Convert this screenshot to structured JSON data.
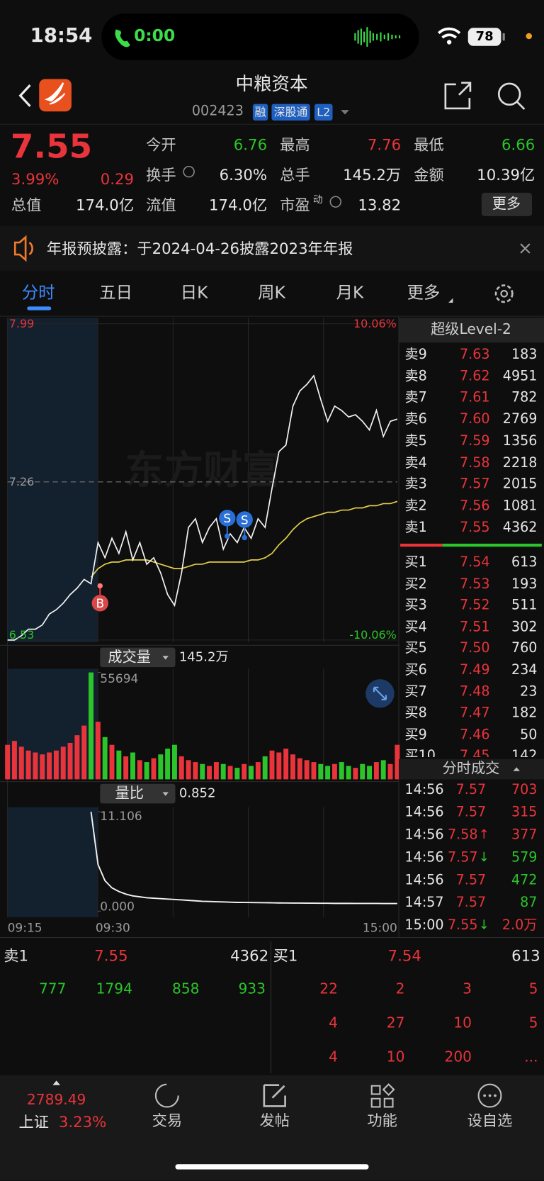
{
  "status_bar": {
    "time": "18:54",
    "call_time": "0:00",
    "battery": "78"
  },
  "header": {
    "title": "中粮资本",
    "code": "002423",
    "badges": [
      "融",
      "深股通",
      "L2"
    ]
  },
  "quote": {
    "price": "7.55",
    "change_pct": "3.99%",
    "change": "0.29",
    "more": "更多",
    "fields": [
      {
        "label": "今开",
        "value": "6.76",
        "color": "down"
      },
      {
        "label": "最高",
        "value": "7.76",
        "color": "up"
      },
      {
        "label": "最低",
        "value": "6.66",
        "color": "down"
      },
      {
        "label": "换手",
        "value": "6.30%"
      },
      {
        "label": "总手",
        "value": "145.2万"
      },
      {
        "label": "金额",
        "value": "10.39亿"
      },
      {
        "label": "总值",
        "value": "174.0亿"
      },
      {
        "label": "流值",
        "value": "174.0亿"
      },
      {
        "label": "市盈",
        "sup": "动",
        "value": "13.82"
      }
    ]
  },
  "notice": {
    "text": "年报预披露：于2024-04-26披露2023年年报"
  },
  "tabs": {
    "items": [
      "分时",
      "五日",
      "日K",
      "周K",
      "月K",
      "更多"
    ],
    "active": 0
  },
  "chart_data": {
    "type": "line",
    "watermark": "东方财富",
    "ylim": [
      6.53,
      7.99
    ],
    "yticks": [
      6.53,
      7.26,
      7.99
    ],
    "pct_labels": [
      "10.06%",
      "-10.06%"
    ],
    "x_labels": [
      "09:15",
      "09:30",
      "15:00"
    ],
    "markers": [
      "B",
      "S",
      "S"
    ],
    "colors": {
      "price": "#f2f2f2",
      "avg": "#e3cf4a",
      "up": "#e8343a",
      "down": "#2bc42b",
      "ratio": "#f2f2f2"
    },
    "price": [
      6.53,
      6.53,
      6.55,
      6.58,
      6.58,
      6.6,
      6.65,
      6.67,
      6.7,
      6.74,
      6.77,
      6.81,
      6.79,
      6.98,
      6.91,
      7.0,
      6.93,
      7.03,
      6.9,
      6.98,
      6.88,
      6.91,
      6.84,
      6.74,
      6.69,
      6.84,
      7.05,
      7.09,
      6.98,
      7.05,
      7.09,
      6.95,
      7.02,
      6.98,
      7.05,
      7.0,
      7.09,
      7.05,
      7.23,
      7.4,
      7.43,
      7.61,
      7.68,
      7.71,
      7.75,
      7.64,
      7.54,
      7.61,
      7.59,
      7.56,
      7.57,
      7.54,
      7.5,
      7.59,
      7.47,
      7.54,
      7.55
    ],
    "avg": [
      null,
      null,
      null,
      null,
      null,
      null,
      null,
      null,
      null,
      null,
      null,
      null,
      6.82,
      6.86,
      6.88,
      6.89,
      6.89,
      6.9,
      6.9,
      6.9,
      6.9,
      6.89,
      6.88,
      6.87,
      6.86,
      6.86,
      6.87,
      6.88,
      6.88,
      6.89,
      6.89,
      6.89,
      6.89,
      6.89,
      6.89,
      6.9,
      6.9,
      6.91,
      6.93,
      6.97,
      7.0,
      7.04,
      7.07,
      7.09,
      7.1,
      7.11,
      7.12,
      7.12,
      7.13,
      7.13,
      7.14,
      7.14,
      7.15,
      7.15,
      7.16,
      7.16,
      7.17
    ],
    "volume": {
      "label": "成交量",
      "total": "145.2万",
      "ylim": [
        0,
        55694
      ],
      "yticks": [
        55694
      ],
      "values": [
        18000,
        20000,
        17000,
        15000,
        14000,
        13000,
        14000,
        15000,
        17000,
        19000,
        23000,
        28000,
        55694,
        30000,
        22000,
        18000,
        15000,
        12000,
        14000,
        10000,
        9000,
        11000,
        13000,
        16000,
        18000,
        12000,
        10000,
        9000,
        8000,
        7000,
        9000,
        8000,
        7000,
        6000,
        8000,
        7000,
        9000,
        12000,
        15000,
        14000,
        16000,
        13000,
        11000,
        10000,
        9000,
        8000,
        7000,
        8000,
        9000,
        7000,
        6000,
        8000,
        7000,
        9000,
        10000,
        8000,
        18000
      ]
    },
    "ratio": {
      "label": "量比",
      "value": "0.852",
      "ylim": [
        0,
        11.106
      ],
      "yticks": [
        {
          "value": 0,
          "label": "0.000"
        },
        11.106
      ],
      "values": [
        null,
        null,
        null,
        null,
        null,
        null,
        null,
        null,
        null,
        null,
        null,
        null,
        11.106,
        5.2,
        3.4,
        2.6,
        2.2,
        1.9,
        1.7,
        1.6,
        1.5,
        1.45,
        1.4,
        1.35,
        1.3,
        1.25,
        1.2,
        1.15,
        1.1,
        1.08,
        1.05,
        1.03,
        1.0,
        0.98,
        0.97,
        0.96,
        0.95,
        0.94,
        0.93,
        0.92,
        0.91,
        0.9,
        0.9,
        0.89,
        0.89,
        0.88,
        0.88,
        0.87,
        0.87,
        0.87,
        0.86,
        0.86,
        0.86,
        0.86,
        0.85,
        0.85,
        0.852
      ]
    }
  },
  "level2": {
    "title": "超级Level-2",
    "asks": [
      [
        "卖9",
        "7.63",
        "183"
      ],
      [
        "卖8",
        "7.62",
        "4951"
      ],
      [
        "卖7",
        "7.61",
        "782"
      ],
      [
        "卖6",
        "7.60",
        "2769"
      ],
      [
        "卖5",
        "7.59",
        "1356"
      ],
      [
        "卖4",
        "7.58",
        "2218"
      ],
      [
        "卖3",
        "7.57",
        "2015"
      ],
      [
        "卖2",
        "7.56",
        "1081"
      ],
      [
        "卖1",
        "7.55",
        "4362"
      ]
    ],
    "bids": [
      [
        "买1",
        "7.54",
        "613"
      ],
      [
        "买2",
        "7.53",
        "193"
      ],
      [
        "买3",
        "7.52",
        "511"
      ],
      [
        "买4",
        "7.51",
        "302"
      ],
      [
        "买5",
        "7.50",
        "760"
      ],
      [
        "买6",
        "7.49",
        "234"
      ],
      [
        "买7",
        "7.48",
        "23"
      ],
      [
        "买8",
        "7.47",
        "182"
      ],
      [
        "买9",
        "7.46",
        "50"
      ],
      [
        "买10",
        "7.45",
        "142"
      ]
    ]
  },
  "ticks": {
    "title": "分时成交",
    "rows": [
      {
        "time": "14:56",
        "price": "7.57",
        "volume": "703",
        "side": "up"
      },
      {
        "time": "14:56",
        "price": "7.57",
        "volume": "315",
        "side": "up"
      },
      {
        "time": "14:56",
        "price": "7.58",
        "dir": "↑",
        "dir_side": "up",
        "volume": "377",
        "side": "up"
      },
      {
        "time": "14:56",
        "price": "7.57",
        "dir": "↓",
        "dir_side": "down",
        "volume": "579",
        "side": "down"
      },
      {
        "time": "14:56",
        "price": "7.57",
        "volume": "472",
        "side": "down"
      },
      {
        "time": "14:57",
        "price": "7.57",
        "volume": "87",
        "side": "down"
      },
      {
        "time": "15:00",
        "price": "7.55",
        "dir": "↓",
        "dir_side": "down",
        "volume": "2.0万",
        "side": "up"
      }
    ]
  },
  "order_book": {
    "ask": [
      "卖1",
      "7.55",
      "4362"
    ],
    "bid": [
      "买1",
      "7.54",
      "613"
    ],
    "ask_queue": [
      "777",
      "1794",
      "858",
      "933"
    ],
    "bid_queue": [
      "22",
      "2",
      "3",
      "5",
      "4",
      "27",
      "10",
      "5",
      "4",
      "10",
      "200",
      "..."
    ]
  },
  "bottom_nav": {
    "index_value": "2789.49",
    "index_name": "上证",
    "index_change": "3.23%",
    "items": [
      "交易",
      "发帖",
      "功能",
      "设自选"
    ]
  }
}
